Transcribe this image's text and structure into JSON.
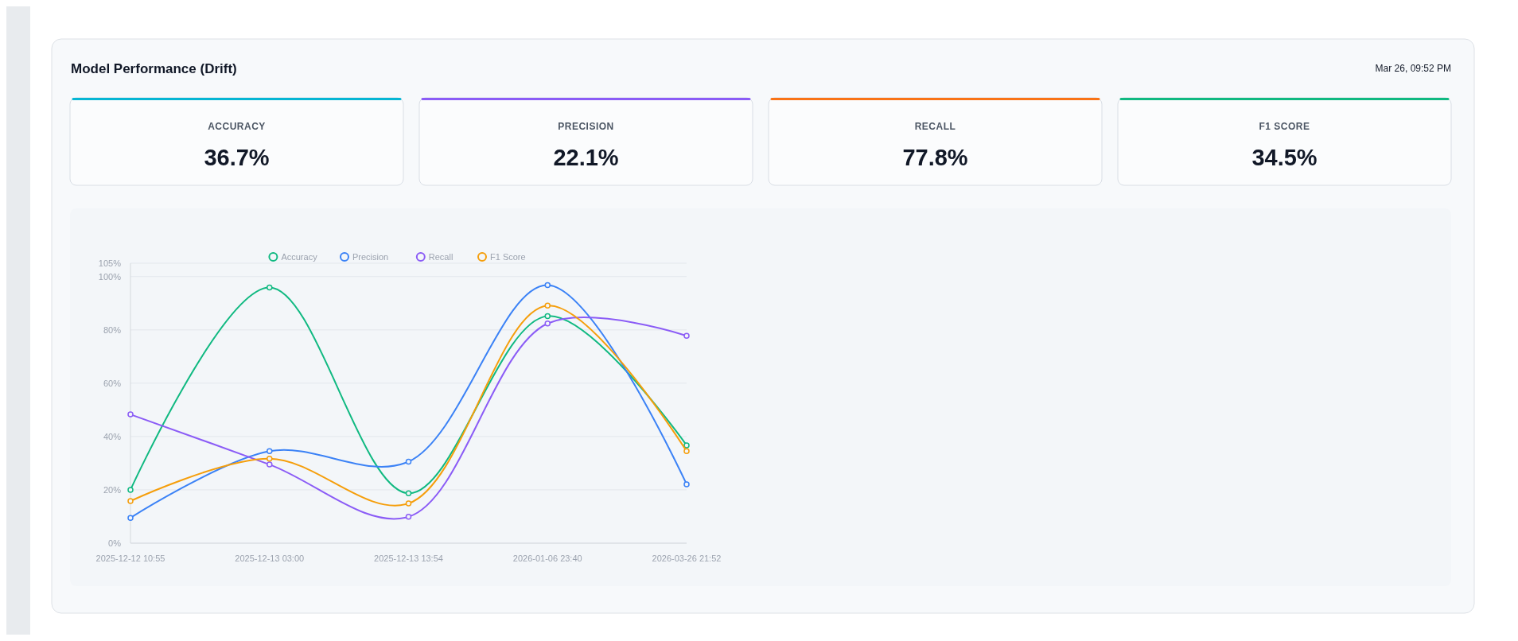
{
  "chart_data": [
    {
      "type": "other",
      "title": "Model Performance (Drift)",
      "subtitle": "Mar 26, 09:52 PM",
      "categories": [
        "ACCURACY",
        "PRECISION",
        "RECALL",
        "F1 SCORE"
      ],
      "value_labels": [
        "36.7%",
        "22.1%",
        "77.8%",
        "34.5%"
      ]
    },
    {
      "type": "line",
      "categories": [
        "2025-12-12 10:55",
        "2025-12-13 03:00",
        "2025-12-13 13:54",
        "2026-01-06 23:40",
        "2026-03-26 21:52"
      ],
      "series": [
        {
          "name": "Accuracy",
          "color": "#10b981",
          "values": [
            20.0,
            95.9,
            18.7,
            85.2,
            36.7
          ]
        },
        {
          "name": "Precision",
          "color": "#3b82f6",
          "values": [
            9.5,
            34.5,
            30.6,
            96.8,
            22.1
          ]
        },
        {
          "name": "Recall",
          "color": "#8b5cf6",
          "values": [
            48.3,
            29.5,
            9.9,
            82.4,
            77.8
          ]
        },
        {
          "name": "F1 Score",
          "color": "#f59e0b",
          "values": [
            15.8,
            31.7,
            14.9,
            89.1,
            34.5
          ]
        }
      ],
      "ylim": [
        0,
        105
      ],
      "yticks": [
        {
          "value": 0,
          "label": "0%"
        },
        {
          "value": 20,
          "label": "20%"
        },
        {
          "value": 40,
          "label": "40%"
        },
        {
          "value": 60,
          "label": "60%"
        },
        {
          "value": 80,
          "label": "80%"
        },
        {
          "value": 100,
          "label": "100%"
        },
        {
          "value": 105,
          "label": "105%"
        }
      ],
      "grid": "y",
      "legend": "top",
      "marker": "circle",
      "line_style": "solid"
    }
  ]
}
